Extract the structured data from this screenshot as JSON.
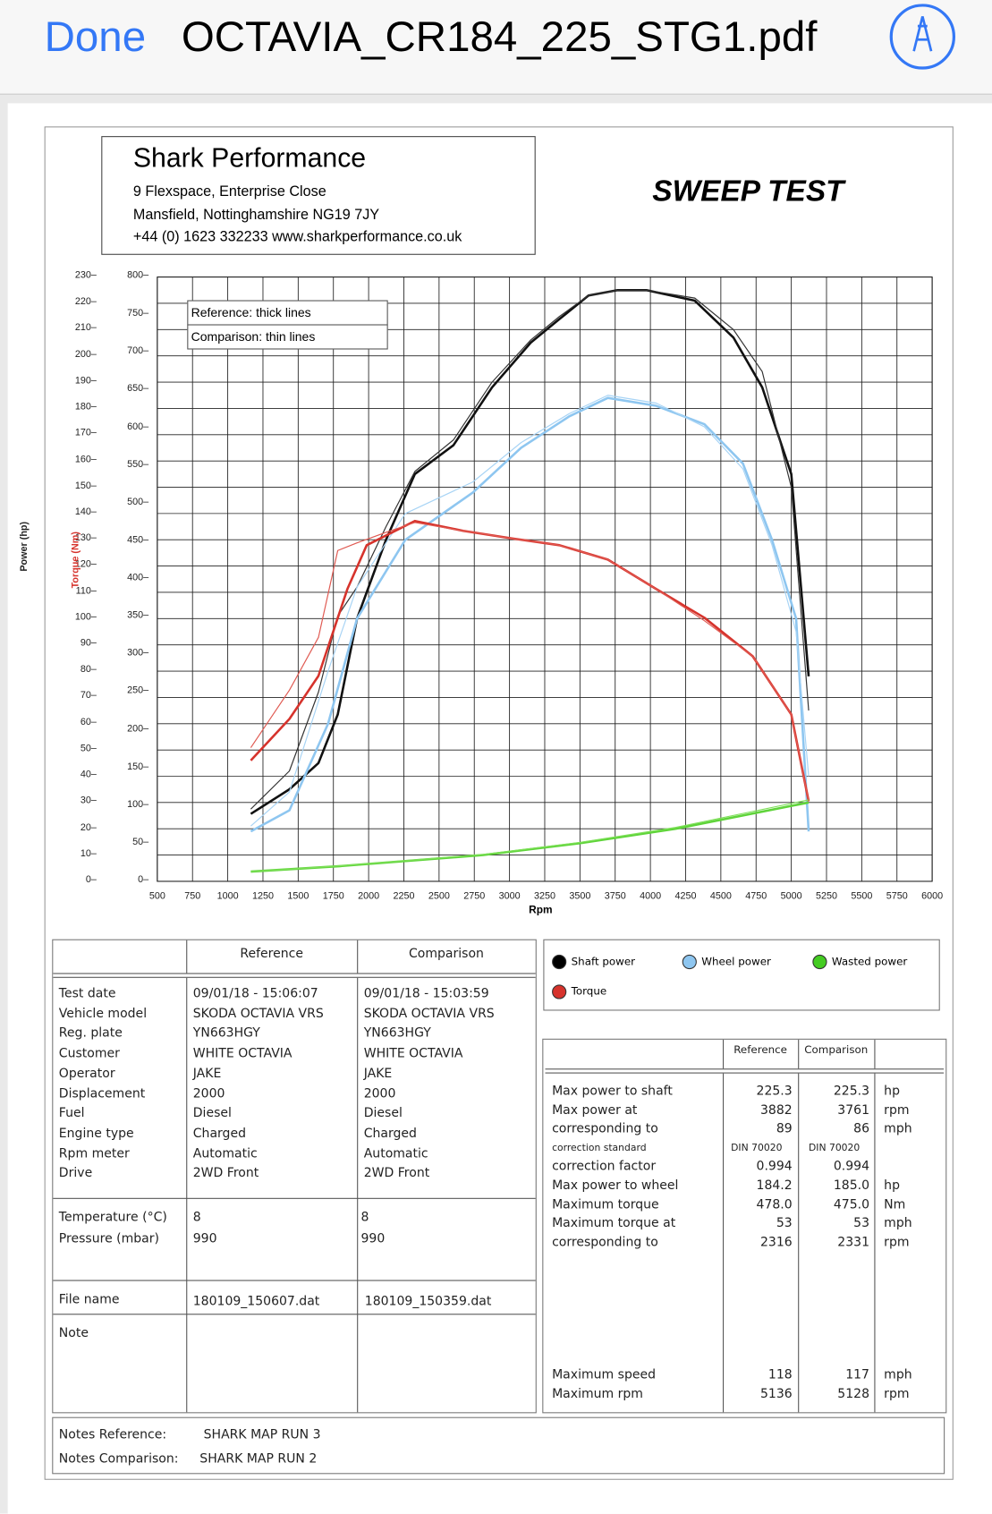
{
  "topbar": {
    "done_label": "Done",
    "file_title": "OCTAVIA_CR184_225_STG1.pdf",
    "markup_icon": "markup-pen-icon",
    "accent": "#3478f6"
  },
  "company": {
    "name": "Shark Performance",
    "address1": "9 Flexspace, Enterprise Close",
    "address2": "Mansfield, Nottinghamshire NG19 7JY",
    "contact": "+44 (0) 1623 332233 www.sharkperformance.co.uk"
  },
  "report_title": "SWEEP TEST",
  "chart_data": {
    "type": "line",
    "xlabel": "Rpm",
    "ylabel_power": "Power (hp)",
    "ylabel_torque": "Torque (Nm)",
    "xlim": [
      500,
      6000
    ],
    "ylim_power": [
      0,
      230
    ],
    "ylim_torque": [
      0,
      800
    ],
    "x_ticks": [
      500,
      750,
      1000,
      1250,
      1500,
      1750,
      2000,
      2250,
      2500,
      2750,
      3000,
      3250,
      3500,
      3750,
      4000,
      4250,
      4500,
      4750,
      5000,
      5250,
      5500,
      5750,
      6000
    ],
    "power_ticks": [
      0,
      10,
      20,
      30,
      40,
      50,
      60,
      70,
      80,
      90,
      100,
      110,
      120,
      130,
      140,
      150,
      160,
      170,
      180,
      190,
      200,
      210,
      220,
      230
    ],
    "torque_ticks": [
      0,
      50,
      100,
      150,
      200,
      250,
      300,
      350,
      400,
      450,
      500,
      550,
      600,
      650,
      700,
      750,
      800
    ],
    "grid": true,
    "annotations": [
      "Reference: thick lines",
      "Comparison: thin lines"
    ],
    "series": [
      {
        "name": "Shaft power",
        "run": "Reference",
        "axis": "power",
        "color": "#111111",
        "x": [
          1164,
          1438,
          1644,
          1781,
          1918,
          2123,
          2328,
          2602,
          2876,
          3150,
          3355,
          3561,
          3767,
          3972,
          4315,
          4589,
          4794,
          5000,
          5123
        ],
        "y": [
          25.7,
          35,
          45,
          63.5,
          100,
          130,
          155,
          166,
          188,
          205,
          214,
          223,
          225,
          225,
          221,
          207,
          188,
          155,
          78
        ]
      },
      {
        "name": "Shaft power",
        "run": "Comparison",
        "axis": "power",
        "color": "#333333",
        "x": [
          1164,
          1438,
          1644,
          1781,
          1918,
          2123,
          2328,
          2602,
          2876,
          3150,
          3355,
          3561,
          3767,
          3972,
          4315,
          4589,
          4794,
          5000,
          5123
        ],
        "y": [
          27.5,
          42,
          72,
          101,
          112,
          135,
          156,
          168,
          190,
          206,
          215,
          223,
          225,
          225,
          222,
          210,
          194,
          150,
          65
        ]
      },
      {
        "name": "Wheel power",
        "run": "Reference",
        "axis": "power",
        "color": "#8ec6f0",
        "x": [
          1164,
          1438,
          1712,
          1918,
          2260,
          2740,
          3082,
          3424,
          3698,
          4041,
          4383,
          4657,
          4863,
          5034,
          5123
        ],
        "y": [
          19,
          27,
          60,
          100,
          130,
          148,
          165,
          177,
          184,
          181,
          174,
          159,
          130,
          100,
          19
        ]
      },
      {
        "name": "Wheel power",
        "run": "Comparison",
        "axis": "power",
        "color": "#a8d4f5",
        "x": [
          1164,
          1438,
          1712,
          1918,
          2260,
          2740,
          3082,
          3424,
          3698,
          4041,
          4383,
          4657,
          4863,
          5034,
          5123
        ],
        "y": [
          21,
          34,
          80,
          112,
          140,
          152,
          167,
          178,
          185,
          182,
          173,
          157,
          128,
          95,
          40
        ]
      },
      {
        "name": "Torque",
        "run": "Reference",
        "axis": "torque",
        "color": "#d6332c",
        "x": [
          1164,
          1438,
          1644,
          1849,
          1986,
          2328,
          2671,
          3013,
          3355,
          3698,
          4041,
          4383,
          4726,
          5000,
          5123
        ],
        "y": [
          160,
          215,
          272,
          387,
          445,
          477,
          464,
          454,
          445,
          426,
          387,
          349,
          298,
          221,
          106
        ]
      },
      {
        "name": "Torque",
        "run": "Comparison",
        "axis": "torque",
        "color": "#e05a52",
        "x": [
          1164,
          1438,
          1644,
          1781,
          1918,
          2123,
          2328,
          2671,
          3013,
          3355,
          3698,
          4041,
          4383,
          4726,
          5000,
          5123
        ],
        "y": [
          177,
          253,
          323,
          438,
          448,
          462,
          475,
          464,
          454,
          445,
          426,
          387,
          345,
          298,
          221,
          106
        ]
      },
      {
        "name": "Wasted power",
        "run": "Reference",
        "axis": "power",
        "color": "#5fd43a",
        "x": [
          1164,
          1800,
          2808,
          3500,
          4178,
          5123
        ],
        "y": [
          3.7,
          5.8,
          10,
          14.5,
          20,
          30
        ]
      },
      {
        "name": "Wasted power",
        "run": "Comparison",
        "axis": "power",
        "color": "#7fe05a",
        "x": [
          1164,
          1800,
          2808,
          3500,
          4178,
          5123
        ],
        "y": [
          3.7,
          5.9,
          10.2,
          14.8,
          20.5,
          31
        ]
      }
    ]
  },
  "legend": [
    {
      "label": "Shaft power",
      "color": "#000000"
    },
    {
      "label": "Wheel power",
      "color": "#8ec6f0"
    },
    {
      "label": "Wasted power",
      "color": "#44cc22"
    },
    {
      "label": "Torque",
      "color": "#d6332c"
    }
  ],
  "info_table": {
    "headers": [
      "Reference",
      "Comparison"
    ],
    "rows": [
      {
        "label": "Test date",
        "ref": "09/01/18 - 15:06:07",
        "cmp": "09/01/18 - 15:03:59"
      },
      {
        "label": "Vehicle model",
        "ref": "SKODA OCTAVIA VRS",
        "cmp": "SKODA OCTAVIA VRS"
      },
      {
        "label": "Reg. plate",
        "ref": "YN663HGY",
        "cmp": "YN663HGY"
      },
      {
        "label": "Customer",
        "ref": "WHITE OCTAVIA",
        "cmp": "WHITE OCTAVIA"
      },
      {
        "label": "Operator",
        "ref": "JAKE",
        "cmp": "JAKE"
      },
      {
        "label": "Displacement",
        "ref": "2000",
        "cmp": "2000"
      },
      {
        "label": "Fuel",
        "ref": "Diesel",
        "cmp": "Diesel"
      },
      {
        "label": "Engine type",
        "ref": "Charged",
        "cmp": "Charged"
      },
      {
        "label": "Rpm meter",
        "ref": "Automatic",
        "cmp": "Automatic"
      },
      {
        "label": "Drive",
        "ref": "2WD Front",
        "cmp": "2WD Front"
      }
    ],
    "env": [
      {
        "label": "Temperature (°C)",
        "ref": "8",
        "cmp": "8"
      },
      {
        "label": "Pressure (mbar)",
        "ref": "990",
        "cmp": "990"
      }
    ],
    "file": {
      "label": "File name",
      "ref": "180109_150607.dat",
      "cmp": "180109_150359.dat"
    },
    "note_label": "Note"
  },
  "stats_table": {
    "headers": [
      "Reference",
      "Comparison"
    ],
    "rows": [
      {
        "label": "Max power to shaft",
        "ref": "225.3",
        "cmp": "225.3",
        "unit": "hp"
      },
      {
        "label": "Max power at",
        "ref": "3882",
        "cmp": "3761",
        "unit": "rpm"
      },
      {
        "label": "corresponding to",
        "ref": "89",
        "cmp": "86",
        "unit": "mph"
      },
      {
        "label": "correction standard",
        "ref": "DIN 70020",
        "cmp": "DIN 70020",
        "unit": "",
        "small": true
      },
      {
        "label": "correction factor",
        "ref": "0.994",
        "cmp": "0.994",
        "unit": ""
      },
      {
        "label": "Max power to wheel",
        "ref": "184.2",
        "cmp": "185.0",
        "unit": "hp"
      },
      {
        "label": "Maximum torque",
        "ref": "478.0",
        "cmp": "475.0",
        "unit": "Nm"
      },
      {
        "label": "Maximum torque at",
        "ref": "53",
        "cmp": "53",
        "unit": "mph"
      },
      {
        "label": "corresponding to",
        "ref": "2316",
        "cmp": "2331",
        "unit": "rpm"
      }
    ],
    "bottom_rows": [
      {
        "label": "Maximum speed",
        "ref": "118",
        "cmp": "117",
        "unit": "mph"
      },
      {
        "label": "Maximum rpm",
        "ref": "5136",
        "cmp": "5128",
        "unit": "rpm"
      }
    ]
  },
  "notes": {
    "ref_label": "Notes Reference:",
    "ref_value": "SHARK MAP RUN 3",
    "cmp_label": "Notes Comparison:",
    "cmp_value": "SHARK MAP RUN 2"
  }
}
